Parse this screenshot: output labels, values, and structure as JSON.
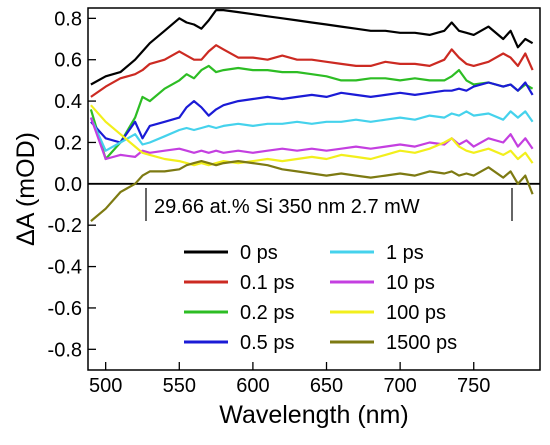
{
  "chart_data": {
    "type": "line",
    "title": "",
    "annotation": "29.66 at.% Si 350 nm 2.7 mW",
    "xlabel": "Wavelength (nm)",
    "ylabel": "ΔA (mOD)",
    "xlim": [
      488,
      795
    ],
    "ylim": [
      -0.9,
      0.85
    ],
    "xticks": [
      500,
      550,
      600,
      650,
      700,
      750
    ],
    "yticks": [
      0.8,
      0.6,
      0.4,
      0.2,
      0.0,
      -0.2,
      -0.4,
      -0.6,
      -0.8
    ],
    "ytick_labels": [
      "0.8",
      "0.6",
      "0.4",
      "0.2",
      "0.0",
      "-0.2",
      "-0.4",
      "-0.6",
      "-0.8"
    ],
    "zero_line": true,
    "grid": false,
    "legend_position": "lower-middle, two columns",
    "x": [
      490,
      500,
      510,
      520,
      525,
      530,
      540,
      550,
      555,
      560,
      565,
      570,
      575,
      580,
      590,
      600,
      610,
      620,
      630,
      640,
      650,
      660,
      670,
      680,
      690,
      700,
      710,
      720,
      730,
      735,
      740,
      745,
      750,
      760,
      770,
      775,
      780,
      785,
      790
    ],
    "series": [
      {
        "name": "0 ps",
        "color": "#000000",
        "values": [
          0.48,
          0.52,
          0.54,
          0.6,
          0.64,
          0.68,
          0.74,
          0.8,
          0.78,
          0.77,
          0.75,
          0.79,
          0.84,
          0.84,
          0.83,
          0.82,
          0.81,
          0.8,
          0.79,
          0.78,
          0.77,
          0.76,
          0.75,
          0.74,
          0.74,
          0.73,
          0.73,
          0.72,
          0.74,
          0.78,
          0.74,
          0.73,
          0.72,
          0.76,
          0.7,
          0.74,
          0.66,
          0.7,
          0.68
        ]
      },
      {
        "name": "0.1 ps",
        "color": "#cc2a22",
        "values": [
          0.42,
          0.47,
          0.51,
          0.53,
          0.55,
          0.58,
          0.6,
          0.64,
          0.62,
          0.6,
          0.6,
          0.64,
          0.67,
          0.65,
          0.61,
          0.61,
          0.6,
          0.62,
          0.6,
          0.6,
          0.59,
          0.58,
          0.57,
          0.57,
          0.59,
          0.58,
          0.58,
          0.57,
          0.6,
          0.65,
          0.61,
          0.58,
          0.57,
          0.59,
          0.63,
          0.61,
          0.57,
          0.63,
          0.55
        ]
      },
      {
        "name": "0.2 ps",
        "color": "#2dbd24",
        "values": [
          0.36,
          0.12,
          0.2,
          0.32,
          0.42,
          0.4,
          0.46,
          0.5,
          0.53,
          0.51,
          0.55,
          0.57,
          0.54,
          0.55,
          0.56,
          0.55,
          0.55,
          0.54,
          0.54,
          0.53,
          0.52,
          0.5,
          0.5,
          0.51,
          0.51,
          0.5,
          0.51,
          0.5,
          0.5,
          0.52,
          0.55,
          0.5,
          0.48,
          0.49,
          0.47,
          0.48,
          0.45,
          0.48,
          0.46
        ]
      },
      {
        "name": "0.5 ps",
        "color": "#1b1bd6",
        "values": [
          0.3,
          0.22,
          0.2,
          0.3,
          0.22,
          0.28,
          0.3,
          0.32,
          0.37,
          0.4,
          0.37,
          0.33,
          0.36,
          0.38,
          0.4,
          0.41,
          0.42,
          0.41,
          0.42,
          0.43,
          0.42,
          0.44,
          0.43,
          0.42,
          0.43,
          0.44,
          0.43,
          0.44,
          0.45,
          0.45,
          0.46,
          0.45,
          0.47,
          0.49,
          0.47,
          0.48,
          0.45,
          0.49,
          0.43
        ]
      },
      {
        "name": "1 ps",
        "color": "#45d2ec",
        "values": [
          0.32,
          0.16,
          0.2,
          0.24,
          0.19,
          0.2,
          0.23,
          0.26,
          0.27,
          0.26,
          0.27,
          0.28,
          0.27,
          0.28,
          0.29,
          0.28,
          0.29,
          0.29,
          0.3,
          0.29,
          0.3,
          0.3,
          0.31,
          0.3,
          0.31,
          0.32,
          0.31,
          0.33,
          0.32,
          0.34,
          0.33,
          0.35,
          0.33,
          0.34,
          0.31,
          0.35,
          0.32,
          0.35,
          0.3
        ]
      },
      {
        "name": "10 ps",
        "color": "#c43fe0",
        "values": [
          0.32,
          0.12,
          0.14,
          0.13,
          0.16,
          0.15,
          0.16,
          0.17,
          0.16,
          0.15,
          0.16,
          0.15,
          0.16,
          0.15,
          0.16,
          0.15,
          0.16,
          0.17,
          0.16,
          0.17,
          0.16,
          0.17,
          0.18,
          0.17,
          0.18,
          0.19,
          0.18,
          0.2,
          0.19,
          0.22,
          0.19,
          0.21,
          0.18,
          0.22,
          0.2,
          0.24,
          0.18,
          0.22,
          0.17
        ]
      },
      {
        "name": "100 ps",
        "color": "#f2ef1c",
        "values": [
          0.38,
          0.3,
          0.24,
          0.18,
          0.15,
          0.14,
          0.12,
          0.11,
          0.1,
          0.09,
          0.1,
          0.09,
          0.1,
          0.11,
          0.1,
          0.11,
          0.12,
          0.11,
          0.12,
          0.13,
          0.12,
          0.14,
          0.13,
          0.12,
          0.14,
          0.16,
          0.15,
          0.17,
          0.2,
          0.22,
          0.18,
          0.16,
          0.15,
          0.17,
          0.14,
          0.16,
          0.12,
          0.15,
          0.1
        ]
      },
      {
        "name": "1500 ps",
        "color": "#7d7a12",
        "values": [
          -0.18,
          -0.12,
          -0.04,
          0.0,
          0.04,
          0.06,
          0.06,
          0.07,
          0.09,
          0.1,
          0.11,
          0.1,
          0.09,
          0.1,
          0.11,
          0.1,
          0.09,
          0.07,
          0.06,
          0.05,
          0.04,
          0.05,
          0.04,
          0.03,
          0.04,
          0.05,
          0.04,
          0.06,
          0.05,
          0.06,
          0.04,
          0.05,
          0.04,
          0.08,
          0.03,
          0.06,
          0.0,
          0.04,
          -0.05
        ]
      }
    ]
  }
}
